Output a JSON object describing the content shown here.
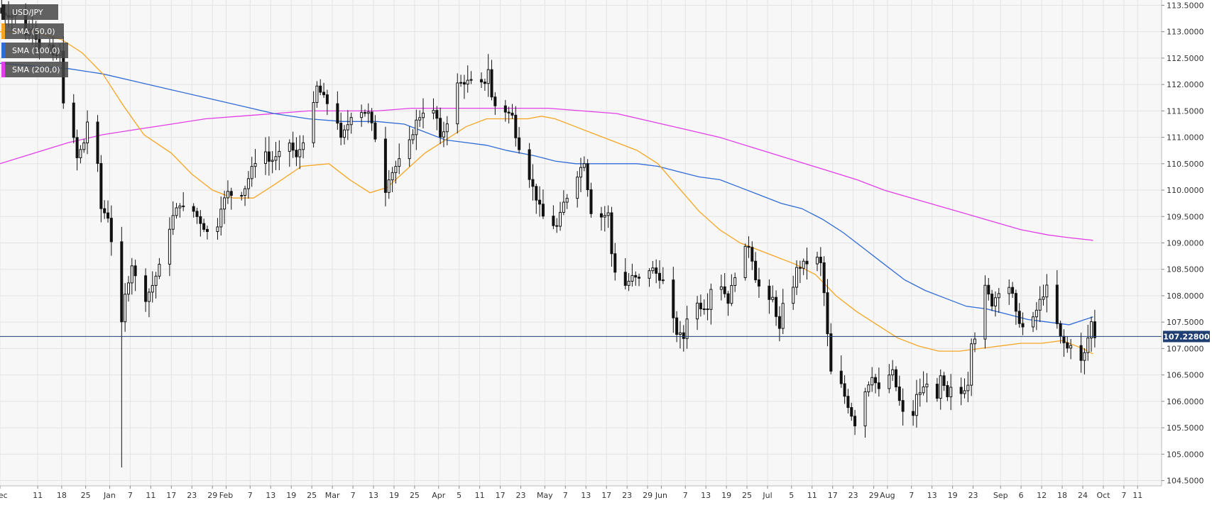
{
  "chart_data": {
    "type": "candlestick",
    "symbol": "USD/JPY",
    "legend": [
      {
        "label": "USD/JPY",
        "color": "#222222"
      },
      {
        "label": "SMA (50,0)",
        "color": "#f5a623"
      },
      {
        "label": "SMA (100,0)",
        "color": "#2f6bd6"
      },
      {
        "label": "SMA (200,0)",
        "color": "#e23ee8"
      }
    ],
    "ylim": [
      104.4,
      113.6
    ],
    "y_ticks": [
      "113.5000",
      "113.0000",
      "112.5000",
      "112.0000",
      "111.5000",
      "111.0000",
      "110.5000",
      "110.0000",
      "109.5000",
      "109.0000",
      "108.5000",
      "108.0000",
      "107.5000",
      "107.0000",
      "106.5000",
      "106.0000",
      "105.5000",
      "105.0000",
      "104.5000"
    ],
    "x_ticks": [
      {
        "day": 0,
        "label": "Dec"
      },
      {
        "day": 11,
        "label": "11"
      },
      {
        "day": 18,
        "label": "18"
      },
      {
        "day": 25,
        "label": "25"
      },
      {
        "day": 32,
        "label": "Jan"
      },
      {
        "day": 38,
        "label": "7"
      },
      {
        "day": 44,
        "label": "11"
      },
      {
        "day": 50,
        "label": "17"
      },
      {
        "day": 56,
        "label": "23"
      },
      {
        "day": 62,
        "label": "29"
      },
      {
        "day": 66,
        "label": "Feb"
      },
      {
        "day": 73,
        "label": "7"
      },
      {
        "day": 79,
        "label": "13"
      },
      {
        "day": 85,
        "label": "19"
      },
      {
        "day": 91,
        "label": "25"
      },
      {
        "day": 97,
        "label": "Mar"
      },
      {
        "day": 103,
        "label": "7"
      },
      {
        "day": 109,
        "label": "13"
      },
      {
        "day": 115,
        "label": "19"
      },
      {
        "day": 121,
        "label": "25"
      },
      {
        "day": 128,
        "label": "Apr"
      },
      {
        "day": 134,
        "label": "5"
      },
      {
        "day": 140,
        "label": "11"
      },
      {
        "day": 146,
        "label": "17"
      },
      {
        "day": 152,
        "label": "23"
      },
      {
        "day": 159,
        "label": "May"
      },
      {
        "day": 165,
        "label": "7"
      },
      {
        "day": 171,
        "label": "13"
      },
      {
        "day": 177,
        "label": "17"
      },
      {
        "day": 183,
        "label": "23"
      },
      {
        "day": 189,
        "label": "29"
      },
      {
        "day": 193,
        "label": "Jun"
      },
      {
        "day": 200,
        "label": "7"
      },
      {
        "day": 206,
        "label": "13"
      },
      {
        "day": 212,
        "label": "19"
      },
      {
        "day": 218,
        "label": "25"
      },
      {
        "day": 224,
        "label": "Jul"
      },
      {
        "day": 231,
        "label": "5"
      },
      {
        "day": 237,
        "label": "11"
      },
      {
        "day": 243,
        "label": "17"
      },
      {
        "day": 249,
        "label": "23"
      },
      {
        "day": 255,
        "label": "29"
      },
      {
        "day": 259,
        "label": "Aug"
      },
      {
        "day": 266,
        "label": "7"
      },
      {
        "day": 272,
        "label": "13"
      },
      {
        "day": 278,
        "label": "19"
      },
      {
        "day": 284,
        "label": "23"
      },
      {
        "day": 292,
        "label": "Sep"
      },
      {
        "day": 298,
        "label": "6"
      },
      {
        "day": 304,
        "label": "12"
      },
      {
        "day": 310,
        "label": "18"
      },
      {
        "day": 316,
        "label": "24"
      },
      {
        "day": 322,
        "label": "Oct"
      },
      {
        "day": 328,
        "label": "7"
      },
      {
        "day": 332,
        "label": "11"
      }
    ],
    "x_range_days": [
      0,
      339
    ],
    "current_price": 107.228,
    "current_price_label": "107.22800",
    "anchors": [
      [
        0,
        113.35
      ],
      [
        4,
        113.3
      ],
      [
        6,
        112.9
      ],
      [
        9,
        113.1
      ],
      [
        11,
        112.7
      ],
      [
        13,
        112.95
      ],
      [
        15,
        112.5
      ],
      [
        17,
        112.6
      ],
      [
        18,
        111.7
      ],
      [
        19,
        111.15
      ],
      [
        20,
        111.3
      ],
      [
        21,
        110.95
      ],
      [
        22,
        110.6
      ],
      [
        24,
        110.9
      ],
      [
        25,
        111.3
      ],
      [
        27,
        110.75
      ],
      [
        28,
        110.45
      ],
      [
        29,
        109.65
      ],
      [
        31,
        109.5
      ],
      [
        33,
        108.6
      ],
      [
        34,
        107.8
      ],
      [
        35,
        107.45
      ],
      [
        36,
        108.0
      ],
      [
        38,
        108.6
      ],
      [
        40,
        108.1
      ],
      [
        42,
        107.95
      ],
      [
        44,
        108.2
      ],
      [
        46,
        108.55
      ],
      [
        48,
        109.1
      ],
      [
        50,
        109.5
      ],
      [
        52,
        109.75
      ],
      [
        54,
        109.55
      ],
      [
        56,
        109.6
      ],
      [
        58,
        109.4
      ],
      [
        60,
        109.2
      ],
      [
        61,
        108.85
      ],
      [
        62,
        109.0
      ],
      [
        64,
        109.7
      ],
      [
        66,
        109.95
      ],
      [
        69,
        109.85
      ],
      [
        71,
        110.05
      ],
      [
        73,
        110.4
      ],
      [
        74,
        110.55
      ],
      [
        76,
        110.9
      ],
      [
        78,
        110.55
      ],
      [
        80,
        110.6
      ],
      [
        82,
        110.75
      ],
      [
        84,
        110.9
      ],
      [
        86,
        110.6
      ],
      [
        88,
        110.95
      ],
      [
        90,
        111.2
      ],
      [
        91,
        111.6
      ],
      [
        92,
        111.95
      ],
      [
        94,
        111.75
      ],
      [
        96,
        111.55
      ],
      [
        98,
        111.3
      ],
      [
        99,
        110.95
      ],
      [
        101,
        111.25
      ],
      [
        103,
        111.6
      ],
      [
        105,
        111.5
      ],
      [
        107,
        111.45
      ],
      [
        109,
        111.0
      ],
      [
        111,
        110.55
      ],
      [
        112,
        110.0
      ],
      [
        113,
        110.25
      ],
      [
        115,
        110.45
      ],
      [
        117,
        110.65
      ],
      [
        119,
        110.9
      ],
      [
        121,
        111.3
      ],
      [
        123,
        111.5
      ],
      [
        125,
        111.6
      ],
      [
        127,
        111.35
      ],
      [
        128,
        110.95
      ],
      [
        130,
        111.3
      ],
      [
        132,
        111.85
      ],
      [
        133,
        112.0
      ],
      [
        135,
        112.05
      ],
      [
        137,
        112.05
      ],
      [
        139,
        111.95
      ],
      [
        141,
        112.05
      ],
      [
        142,
        112.3
      ],
      [
        143,
        111.75
      ],
      [
        145,
        111.45
      ],
      [
        147,
        111.5
      ],
      [
        149,
        111.4
      ],
      [
        150,
        111.05
      ],
      [
        152,
        110.6
      ],
      [
        154,
        110.25
      ],
      [
        156,
        109.85
      ],
      [
        158,
        109.5
      ],
      [
        159,
        109.6
      ],
      [
        161,
        109.35
      ],
      [
        162,
        109.3
      ],
      [
        164,
        109.75
      ],
      [
        166,
        110.0
      ],
      [
        168,
        110.3
      ],
      [
        170,
        110.55
      ],
      [
        171,
        110.05
      ],
      [
        172,
        109.6
      ],
      [
        173,
        109.35
      ],
      [
        175,
        109.5
      ],
      [
        177,
        109.55
      ],
      [
        178,
        108.8
      ],
      [
        180,
        108.15
      ],
      [
        182,
        108.2
      ],
      [
        184,
        108.35
      ],
      [
        186,
        108.3
      ],
      [
        188,
        108.5
      ],
      [
        190,
        108.5
      ],
      [
        192,
        108.35
      ],
      [
        194,
        108.2
      ],
      [
        195,
        107.75
      ],
      [
        197,
        107.3
      ],
      [
        199,
        107.2
      ],
      [
        200,
        107.6
      ],
      [
        202,
        107.9
      ],
      [
        204,
        107.8
      ],
      [
        206,
        107.8
      ],
      [
        208,
        108.5
      ],
      [
        210,
        108.2
      ],
      [
        212,
        107.9
      ],
      [
        214,
        108.4
      ],
      [
        216,
        108.8
      ],
      [
        218,
        108.95
      ],
      [
        219,
        108.7
      ],
      [
        220,
        108.35
      ],
      [
        222,
        108.0
      ],
      [
        223,
        107.8
      ],
      [
        225,
        107.95
      ],
      [
        227,
        107.35
      ],
      [
        228,
        107.8
      ],
      [
        229,
        107.9
      ],
      [
        231,
        108.2
      ],
      [
        232,
        108.5
      ],
      [
        234,
        108.6
      ],
      [
        236,
        108.65
      ],
      [
        238,
        108.7
      ],
      [
        239,
        108.6
      ],
      [
        240,
        108.05
      ],
      [
        241,
        107.25
      ],
      [
        242,
        106.55
      ],
      [
        243,
        106.05
      ],
      [
        244,
        106.5
      ],
      [
        246,
        106.1
      ],
      [
        248,
        105.75
      ],
      [
        250,
        105.4
      ],
      [
        252,
        106.2
      ],
      [
        254,
        106.5
      ],
      [
        256,
        106.2
      ],
      [
        258,
        106.45
      ],
      [
        260,
        106.55
      ],
      [
        262,
        106.0
      ],
      [
        264,
        105.55
      ],
      [
        266,
        105.75
      ],
      [
        267,
        106.1
      ],
      [
        269,
        106.25
      ],
      [
        271,
        106.5
      ],
      [
        273,
        106.0
      ],
      [
        274,
        106.45
      ],
      [
        276,
        106.05
      ],
      [
        278,
        106.4
      ],
      [
        280,
        106.15
      ],
      [
        282,
        106.35
      ],
      [
        283,
        107.15
      ],
      [
        285,
        107.3
      ],
      [
        287,
        108.15
      ],
      [
        289,
        107.85
      ],
      [
        291,
        108.1
      ],
      [
        293,
        108.35
      ],
      [
        295,
        108.0
      ],
      [
        296,
        107.65
      ],
      [
        298,
        107.4
      ],
      [
        299,
        107.05
      ],
      [
        301,
        107.55
      ],
      [
        303,
        107.9
      ],
      [
        305,
        108.15
      ],
      [
        307,
        107.8
      ],
      [
        308,
        107.45
      ],
      [
        309,
        107.2
      ],
      [
        311,
        107.0
      ],
      [
        313,
        107.2
      ],
      [
        315,
        106.75
      ],
      [
        316,
        106.9
      ],
      [
        318,
        107.5
      ],
      [
        319,
        107.23
      ]
    ],
    "sma50": [
      [
        0,
        113.0
      ],
      [
        10,
        113.0
      ],
      [
        18,
        112.85
      ],
      [
        24,
        112.6
      ],
      [
        30,
        112.2
      ],
      [
        36,
        111.6
      ],
      [
        42,
        111.05
      ],
      [
        50,
        110.7
      ],
      [
        56,
        110.3
      ],
      [
        62,
        110.0
      ],
      [
        68,
        109.85
      ],
      [
        74,
        109.85
      ],
      [
        80,
        110.1
      ],
      [
        88,
        110.45
      ],
      [
        96,
        110.5
      ],
      [
        102,
        110.2
      ],
      [
        108,
        109.95
      ],
      [
        113,
        110.05
      ],
      [
        118,
        110.35
      ],
      [
        124,
        110.7
      ],
      [
        130,
        110.95
      ],
      [
        136,
        111.2
      ],
      [
        142,
        111.35
      ],
      [
        148,
        111.35
      ],
      [
        154,
        111.35
      ],
      [
        158,
        111.4
      ],
      [
        162,
        111.35
      ],
      [
        168,
        111.2
      ],
      [
        174,
        111.05
      ],
      [
        180,
        110.9
      ],
      [
        186,
        110.75
      ],
      [
        192,
        110.5
      ],
      [
        198,
        110.05
      ],
      [
        204,
        109.6
      ],
      [
        210,
        109.25
      ],
      [
        216,
        109.0
      ],
      [
        220,
        108.9
      ],
      [
        226,
        108.75
      ],
      [
        232,
        108.6
      ],
      [
        238,
        108.4
      ],
      [
        244,
        108.0
      ],
      [
        250,
        107.7
      ],
      [
        256,
        107.45
      ],
      [
        262,
        107.2
      ],
      [
        268,
        107.05
      ],
      [
        274,
        106.95
      ],
      [
        280,
        106.95
      ],
      [
        286,
        107.0
      ],
      [
        292,
        107.05
      ],
      [
        298,
        107.1
      ],
      [
        304,
        107.1
      ],
      [
        310,
        107.15
      ],
      [
        316,
        107.0
      ],
      [
        319,
        106.9
      ]
    ],
    "sma100": [
      [
        0,
        112.4
      ],
      [
        10,
        112.35
      ],
      [
        20,
        112.3
      ],
      [
        30,
        112.2
      ],
      [
        40,
        112.05
      ],
      [
        50,
        111.9
      ],
      [
        60,
        111.75
      ],
      [
        70,
        111.6
      ],
      [
        80,
        111.45
      ],
      [
        90,
        111.35
      ],
      [
        100,
        111.3
      ],
      [
        110,
        111.3
      ],
      [
        118,
        111.25
      ],
      [
        124,
        111.1
      ],
      [
        130,
        110.95
      ],
      [
        136,
        110.9
      ],
      [
        142,
        110.85
      ],
      [
        148,
        110.75
      ],
      [
        156,
        110.65
      ],
      [
        162,
        110.55
      ],
      [
        168,
        110.5
      ],
      [
        174,
        110.5
      ],
      [
        180,
        110.5
      ],
      [
        186,
        110.5
      ],
      [
        192,
        110.45
      ],
      [
        198,
        110.35
      ],
      [
        204,
        110.25
      ],
      [
        210,
        110.2
      ],
      [
        216,
        110.05
      ],
      [
        222,
        109.9
      ],
      [
        228,
        109.75
      ],
      [
        234,
        109.65
      ],
      [
        240,
        109.45
      ],
      [
        246,
        109.2
      ],
      [
        252,
        108.9
      ],
      [
        258,
        108.6
      ],
      [
        264,
        108.3
      ],
      [
        270,
        108.1
      ],
      [
        276,
        107.95
      ],
      [
        282,
        107.8
      ],
      [
        288,
        107.75
      ],
      [
        294,
        107.65
      ],
      [
        300,
        107.55
      ],
      [
        306,
        107.5
      ],
      [
        312,
        107.45
      ],
      [
        319,
        107.6
      ]
    ],
    "sma200": [
      [
        0,
        110.5
      ],
      [
        10,
        110.7
      ],
      [
        20,
        110.9
      ],
      [
        30,
        111.05
      ],
      [
        40,
        111.15
      ],
      [
        50,
        111.25
      ],
      [
        60,
        111.35
      ],
      [
        70,
        111.4
      ],
      [
        80,
        111.45
      ],
      [
        90,
        111.5
      ],
      [
        100,
        111.5
      ],
      [
        110,
        111.5
      ],
      [
        120,
        111.55
      ],
      [
        130,
        111.55
      ],
      [
        140,
        111.55
      ],
      [
        150,
        111.55
      ],
      [
        160,
        111.55
      ],
      [
        170,
        111.5
      ],
      [
        180,
        111.45
      ],
      [
        190,
        111.3
      ],
      [
        200,
        111.15
      ],
      [
        210,
        111.0
      ],
      [
        220,
        110.8
      ],
      [
        230,
        110.6
      ],
      [
        240,
        110.4
      ],
      [
        250,
        110.2
      ],
      [
        258,
        110.0
      ],
      [
        266,
        109.85
      ],
      [
        274,
        109.7
      ],
      [
        282,
        109.55
      ],
      [
        290,
        109.4
      ],
      [
        298,
        109.25
      ],
      [
        306,
        109.15
      ],
      [
        312,
        109.1
      ],
      [
        319,
        109.05
      ]
    ],
    "spike_low": {
      "day": 35,
      "low": 104.75
    },
    "aug_low": {
      "day": 264,
      "low": 104.45
    }
  }
}
